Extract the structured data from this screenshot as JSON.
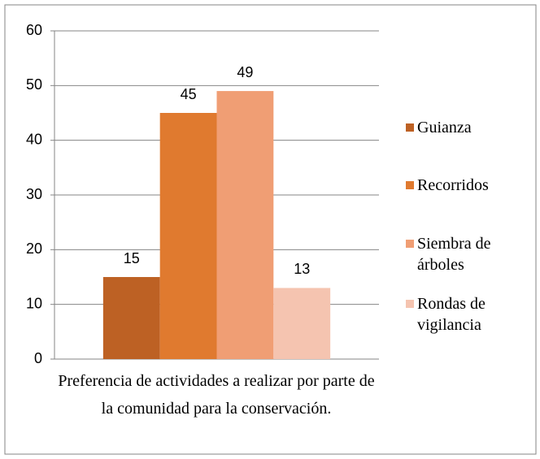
{
  "chart_data": {
    "type": "bar",
    "categories": [
      "Preferencia de actividades a realizar por parte de la comunidad para la conservación."
    ],
    "series": [
      {
        "name": "Guianza",
        "color": "#bd6124",
        "values": [
          15
        ]
      },
      {
        "name": "Recorridos",
        "color": "#e07a2f",
        "values": [
          45
        ]
      },
      {
        "name": "Siembra de árboles",
        "color": "#f09e74",
        "values": [
          49
        ]
      },
      {
        "name": "Rondas de vigilancia",
        "color": "#f5c4b0",
        "values": [
          13
        ]
      }
    ],
    "ylim": [
      0,
      60
    ],
    "yticks": [
      0,
      10,
      20,
      30,
      40,
      50,
      60
    ],
    "grid": true,
    "legend": "right"
  }
}
